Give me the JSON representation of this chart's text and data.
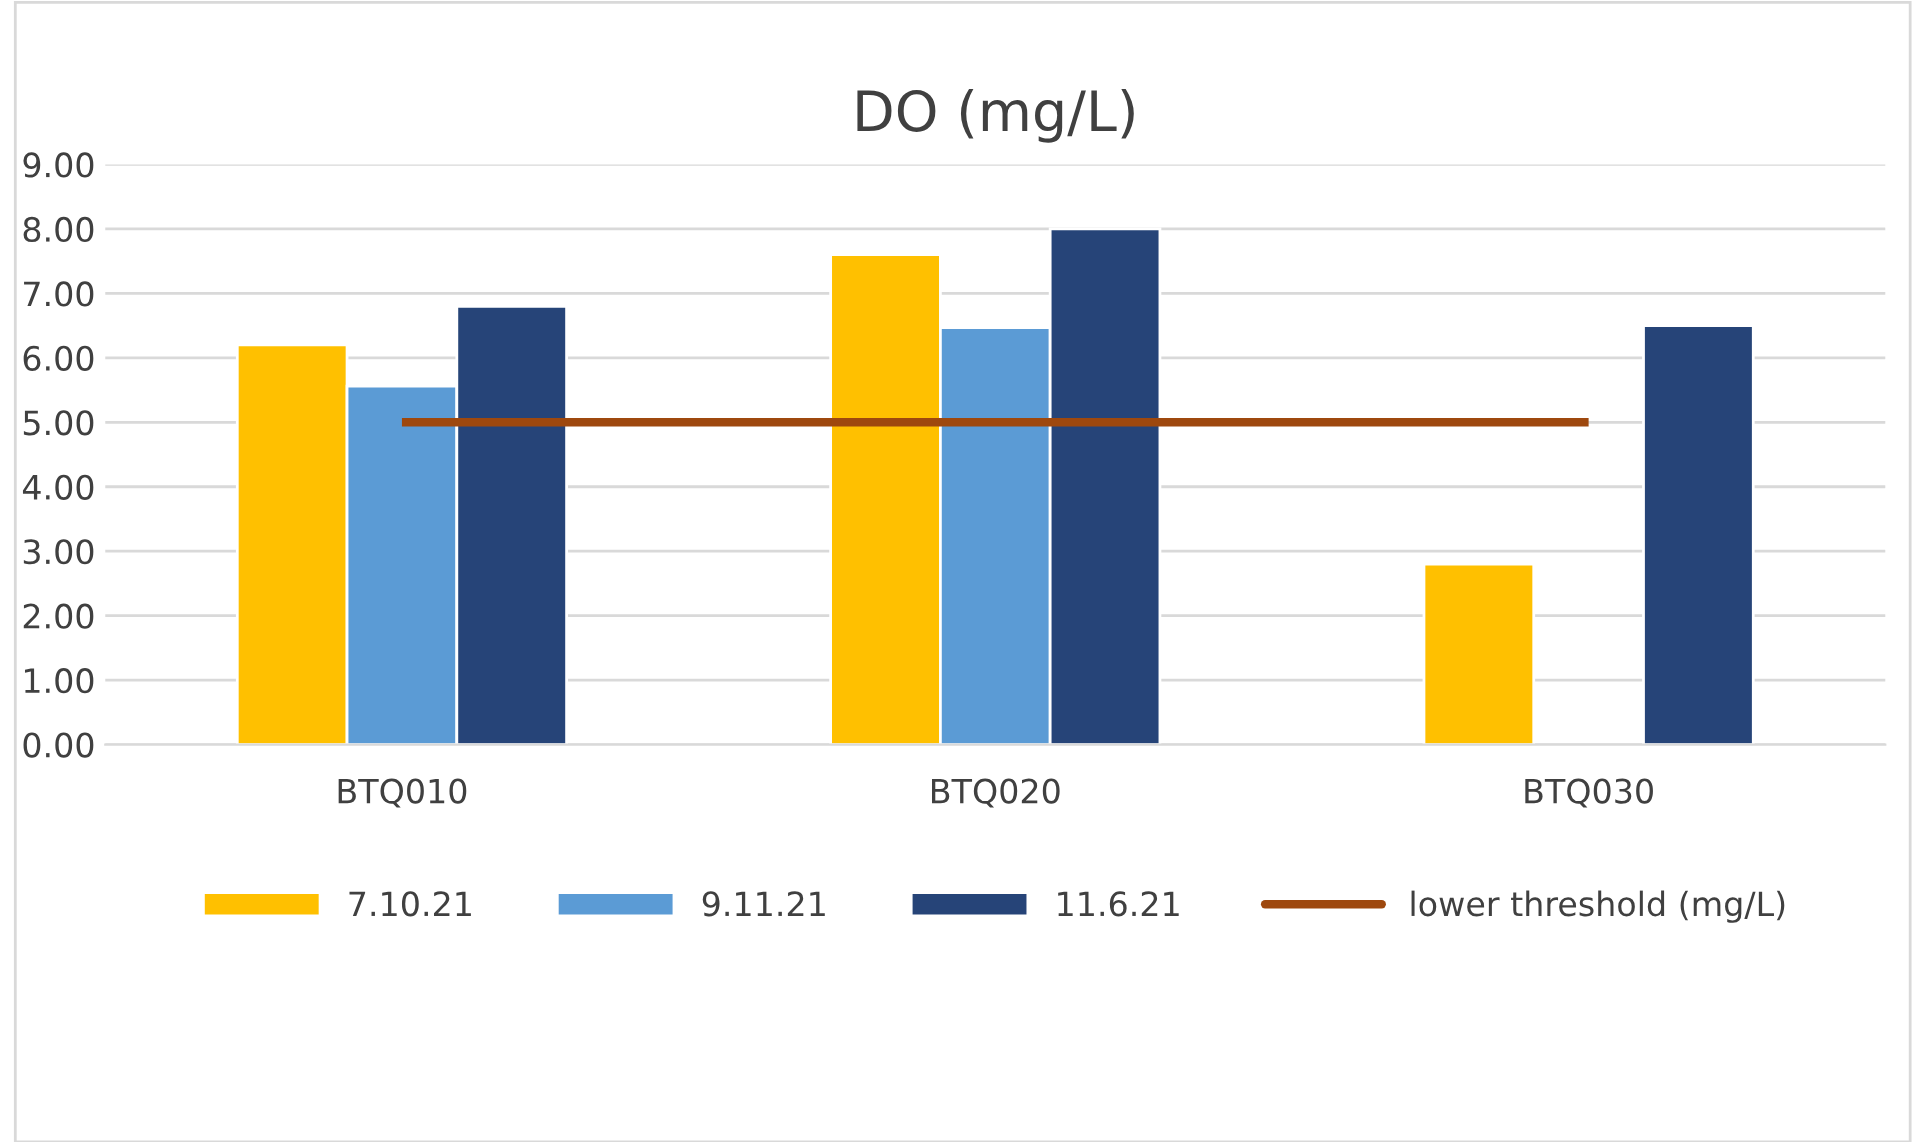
{
  "chart_data": {
    "type": "bar",
    "title": "DO (mg/L)",
    "categories": [
      "BTQ010",
      "BTQ020",
      "BTQ030"
    ],
    "series": [
      {
        "name": "7.10.21",
        "color": "#ffc000",
        "values": [
          6.2,
          7.6,
          2.8
        ]
      },
      {
        "name": "9.11.21",
        "color": "#5b9bd5",
        "values": [
          5.56,
          6.47,
          null
        ]
      },
      {
        "name": "11.6.21",
        "color": "#264478",
        "values": [
          6.8,
          8.0,
          6.5
        ]
      },
      {
        "name": "lower threshold (mg/L)",
        "color": "#9e480e",
        "type": "line",
        "values": [
          5,
          5,
          5
        ]
      }
    ],
    "ylim": [
      0,
      9
    ],
    "yticks": [
      {
        "value": 0,
        "label": "0.00"
      },
      {
        "value": 1,
        "label": "1.00"
      },
      {
        "value": 2,
        "label": "2.00"
      },
      {
        "value": 3,
        "label": "3.00"
      },
      {
        "value": 4,
        "label": "4.00"
      },
      {
        "value": 5,
        "label": "5.00"
      },
      {
        "value": 6,
        "label": "6.00"
      },
      {
        "value": 7,
        "label": "7.00"
      },
      {
        "value": 8,
        "label": "8.00"
      },
      {
        "value": 9,
        "label": "9.00"
      }
    ],
    "grid": "y",
    "legend": "bottom"
  }
}
